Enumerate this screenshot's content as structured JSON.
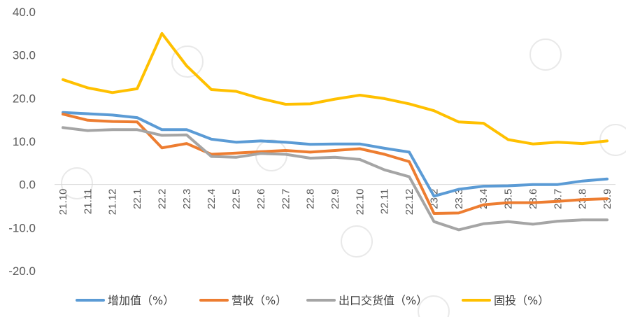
{
  "chart_data": {
    "type": "line",
    "categories": [
      "21.10",
      "21.11",
      "21.12",
      "22.1",
      "22.2",
      "22.3",
      "22.4",
      "22.5",
      "22.6",
      "22.7",
      "22.8",
      "22.9",
      "22.10",
      "22.11",
      "22.12",
      "23.2",
      "23.3",
      "23.4",
      "23.5",
      "23.6",
      "23.7",
      "23.8",
      "23.9"
    ],
    "ylim": [
      -20,
      40
    ],
    "yticks": [
      "40.0",
      "30.0",
      "20.0",
      "10.0",
      "0.0",
      "-10.0",
      "-20.0"
    ],
    "grid": false,
    "legend_position": "bottom",
    "series": [
      {
        "name": "增加值（%）",
        "color": "#5B9BD5",
        "values": [
          16.7,
          16.4,
          16.1,
          15.5,
          12.7,
          12.7,
          10.5,
          9.8,
          10.1,
          9.8,
          9.3,
          9.4,
          9.4,
          8.4,
          7.5,
          -2.7,
          -1.1,
          -0.4,
          -0.3,
          0.0,
          0.0,
          0.8,
          1.3
        ]
      },
      {
        "name": "营收（%）",
        "color": "#ED7D31",
        "values": [
          16.3,
          14.9,
          14.6,
          14.5,
          8.5,
          9.5,
          7.0,
          7.3,
          7.6,
          7.9,
          7.5,
          7.9,
          8.3,
          7.0,
          5.3,
          -6.7,
          -6.6,
          -4.7,
          -4.2,
          -4.2,
          -3.9,
          -3.5,
          -3.3
        ]
      },
      {
        "name": "出口交货值（%）",
        "color": "#A5A5A5",
        "values": [
          13.2,
          12.5,
          12.7,
          12.7,
          11.4,
          11.5,
          6.5,
          6.3,
          7.2,
          7.0,
          6.1,
          6.3,
          5.8,
          3.4,
          1.8,
          -8.6,
          -10.5,
          -9.1,
          -8.6,
          -9.2,
          -8.5,
          -8.2,
          -8.2
        ]
      },
      {
        "name": "固投（%）",
        "color": "#FFC000",
        "values": [
          24.3,
          22.4,
          21.3,
          22.2,
          35.0,
          27.5,
          22.0,
          21.6,
          19.9,
          18.6,
          18.7,
          19.8,
          20.7,
          19.9,
          18.7,
          17.1,
          14.5,
          14.2,
          10.4,
          9.4,
          9.8,
          9.5,
          10.1
        ]
      }
    ]
  }
}
